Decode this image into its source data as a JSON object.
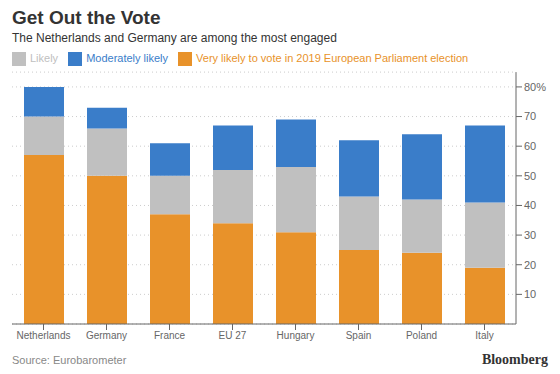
{
  "chart_data": {
    "type": "bar",
    "title": "Get Out the Vote",
    "subtitle": "The Netherlands and Germany are among the most engaged",
    "source": "Source: Eurobarometer",
    "annotations": [
      "Bloomberg"
    ],
    "categories": [
      "Netherlands",
      "Germany",
      "France",
      "EU 27",
      "Hungary",
      "Spain",
      "Poland",
      "Italy"
    ],
    "series": [
      {
        "name": "Very likely to vote in 2019 European Parliament election",
        "color": "#E8922A",
        "values": [
          57,
          50,
          37,
          34,
          31,
          25,
          24,
          19
        ]
      },
      {
        "name": "Likely",
        "color": "#C0C0C0",
        "values": [
          13,
          16,
          13,
          18,
          22,
          18,
          18,
          22
        ]
      },
      {
        "name": "Moderately likely",
        "color": "#3A7DC9",
        "values": [
          10,
          7,
          11,
          15,
          16,
          19,
          22,
          26
        ]
      }
    ],
    "stacked": true,
    "ylim": [
      0,
      85
    ],
    "yticks": [
      10,
      20,
      30,
      40,
      50,
      60,
      70,
      {
        "value": 80,
        "label": "80%"
      }
    ],
    "grid": true,
    "legend": "upper left"
  }
}
